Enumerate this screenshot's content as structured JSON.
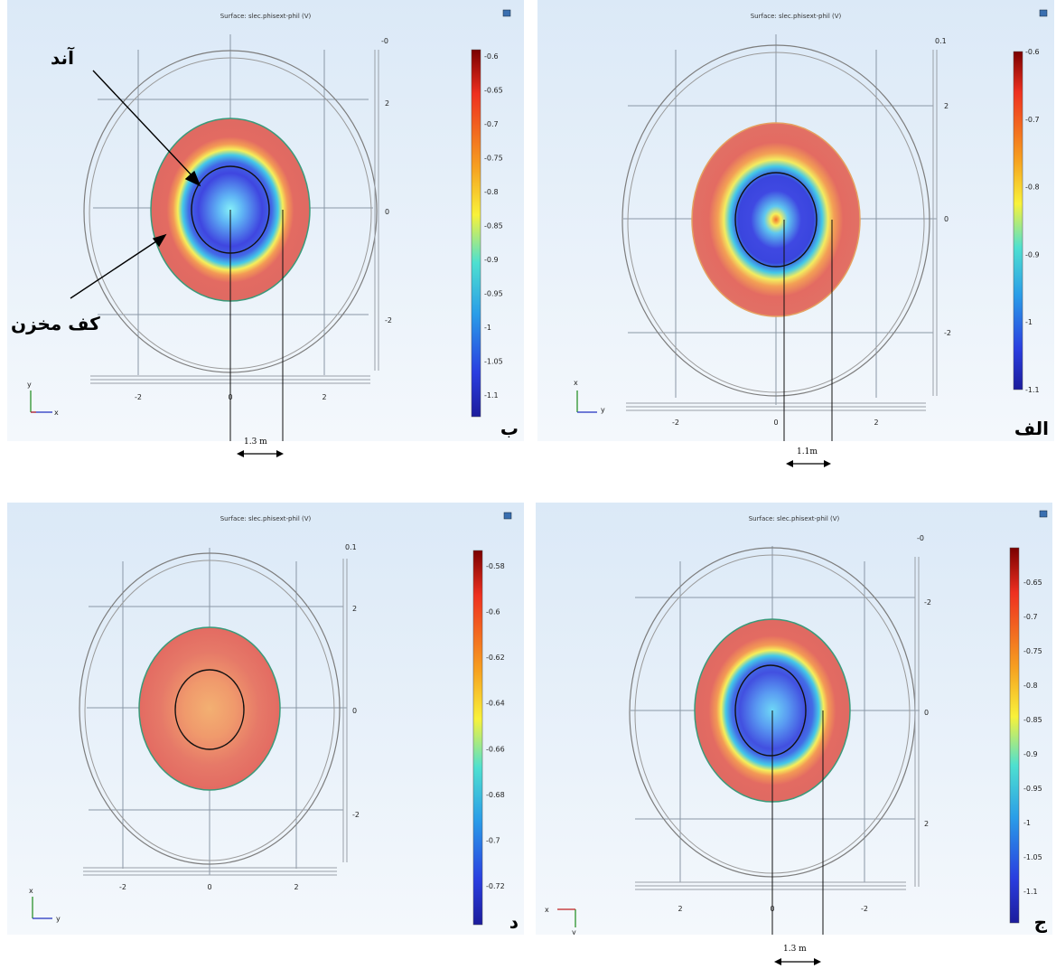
{
  "plot_title": "Surface: slec.phisext-phil (V)",
  "annotations": {
    "anode": "آند",
    "tank_floor": "کف مخزن"
  },
  "colors": {
    "red": "#e36b62",
    "blue": "#2f2fd0",
    "cyan": "#48d6e6",
    "bg_top": "#dbe9f7"
  },
  "panels": [
    {
      "id": "alef",
      "label": "الف",
      "axis_h": "y",
      "axis_v": "x",
      "top_value": "0.1",
      "colorbar_ticks": [
        "-0.6",
        "-0.7",
        "-0.8",
        "-0.9",
        "-1",
        "-1.1"
      ],
      "x_ticks": [
        "-2",
        "0",
        "2"
      ],
      "y_ticks": [
        "2",
        "0",
        "-2"
      ],
      "scale_text": "1.1m"
    },
    {
      "id": "be",
      "label": "ب",
      "axis_h": "x",
      "axis_v": "y",
      "top_value": "-0",
      "colorbar_ticks": [
        "-0.6",
        "-0.65",
        "-0.7",
        "-0.75",
        "-0.8",
        "-0.85",
        "-0.9",
        "-0.95",
        "-1",
        "-1.05",
        "-1.1"
      ],
      "x_ticks": [
        "-2",
        "0",
        "2"
      ],
      "y_ticks": [
        "2",
        "0",
        "-2"
      ],
      "scale_text": "1.3 m"
    },
    {
      "id": "jim",
      "label": "ج",
      "axis_h": "x",
      "axis_v": "y",
      "top_value": "-0",
      "colorbar_ticks": [
        "-0.65",
        "-0.7",
        "-0.75",
        "-0.8",
        "-0.85",
        "-0.9",
        "-0.95",
        "-1",
        "-1.05",
        "-1.1"
      ],
      "x_ticks": [
        "2",
        "0",
        "-2"
      ],
      "y_ticks": [
        "-2",
        "0",
        "2"
      ],
      "scale_text": "1.3 m"
    },
    {
      "id": "dal",
      "label": "د",
      "axis_h": "y",
      "axis_v": "x",
      "top_value": "0.1",
      "colorbar_ticks": [
        "-0.58",
        "-0.6",
        "-0.62",
        "-0.64",
        "-0.66",
        "-0.68",
        "-0.7",
        "-0.72"
      ],
      "x_ticks": [
        "-2",
        "0",
        "2"
      ],
      "y_ticks": [
        "2",
        "0",
        "-2"
      ],
      "scale_text": ""
    }
  ]
}
